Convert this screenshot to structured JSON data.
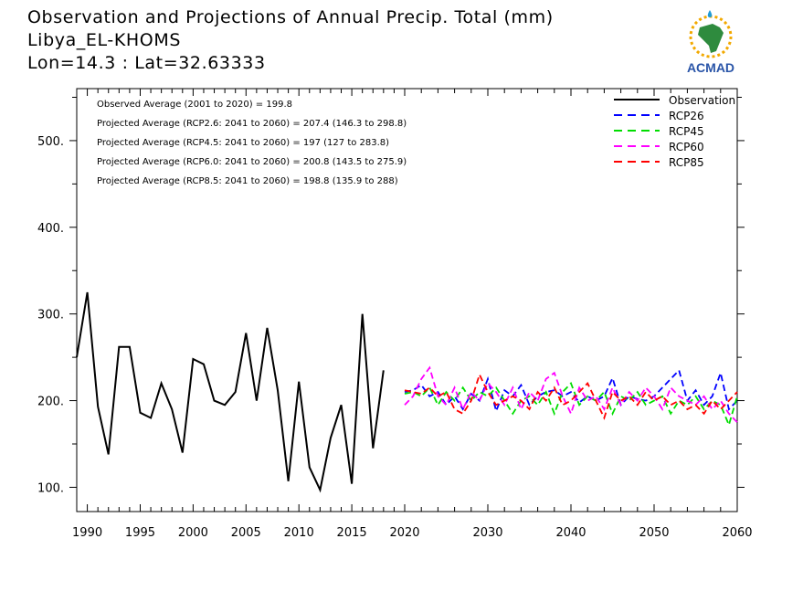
{
  "header": {
    "title": "Observation and Projections of Annual Precip. Total (mm)",
    "station": "Libya_EL-KHOMS",
    "coords": "Lon=14.3 : Lat=32.63333"
  },
  "logo": {
    "text": "ACMAD",
    "icon": "africa-map-icon"
  },
  "chart_data": {
    "type": "line",
    "xlim": [
      1989,
      2060
    ],
    "ylim": [
      72,
      560
    ],
    "x_ticks": [
      1990,
      1995,
      2000,
      2005,
      2010,
      2015,
      2020,
      2030,
      2040,
      2050,
      2060
    ],
    "y_ticks": [
      100,
      200,
      300,
      400,
      500
    ],
    "y_tick_labels": [
      "100.",
      "200.",
      "300.",
      "400.",
      "500."
    ],
    "stats": [
      "Observed Average (2001 to 2020) = 199.8",
      "Projected Average (RCP2.6: 2041 to 2060) = 207.4 (146.3 to 298.8)",
      "Projected Average (RCP4.5: 2041 to 2060) = 197 (127 to 283.8)",
      "Projected Average (RCP6.0: 2041 to 2060) = 200.8 (143.5 to 275.9)",
      "Projected Average (RCP8.5: 2041 to 2060) = 198.8 (135.9 to 288)"
    ],
    "legend_position": "top-right",
    "series": [
      {
        "name": "Observation",
        "color": "#000000",
        "dashed": false,
        "x": [
          1989,
          1990,
          1991,
          1992,
          1993,
          1994,
          1995,
          1996,
          1997,
          1998,
          1999,
          2000,
          2001,
          2002,
          2003,
          2004,
          2005,
          2006,
          2007,
          2008,
          2009,
          2010,
          2011,
          2012,
          2013,
          2014,
          2015,
          2016,
          2017,
          2018,
          2019,
          2020
        ],
        "values": [
          250,
          325,
          193,
          138,
          262,
          262,
          186,
          180,
          220,
          190,
          140,
          248,
          242,
          200,
          195,
          210,
          278,
          200,
          284,
          212,
          107,
          222,
          123,
          97,
          157,
          195,
          104,
          300,
          145,
          235,
          null,
          null
        ]
      },
      {
        "name": "RCP26",
        "color": "#0000ff",
        "dashed": true,
        "x": [
          2020,
          2021,
          2022,
          2023,
          2024,
          2025,
          2026,
          2027,
          2028,
          2029,
          2030,
          2031,
          2032,
          2033,
          2034,
          2035,
          2036,
          2037,
          2038,
          2039,
          2040,
          2041,
          2042,
          2043,
          2044,
          2045,
          2046,
          2047,
          2048,
          2049,
          2050,
          2051,
          2052,
          2053,
          2054,
          2055,
          2056,
          2057,
          2058,
          2059,
          2060
        ],
        "values": [
          210,
          212,
          218,
          205,
          210,
          195,
          205,
          190,
          208,
          200,
          225,
          188,
          212,
          205,
          218,
          195,
          205,
          210,
          212,
          205,
          210,
          198,
          205,
          200,
          205,
          226,
          195,
          205,
          202,
          200,
          205,
          215,
          225,
          235,
          200,
          212,
          195,
          205,
          232,
          190,
          200
        ]
      },
      {
        "name": "RCP45",
        "color": "#00dd00",
        "dashed": true,
        "x": [
          2020,
          2021,
          2022,
          2023,
          2024,
          2025,
          2026,
          2027,
          2028,
          2029,
          2030,
          2031,
          2032,
          2033,
          2034,
          2035,
          2036,
          2037,
          2038,
          2039,
          2040,
          2041,
          2042,
          2043,
          2044,
          2045,
          2046,
          2047,
          2048,
          2049,
          2050,
          2051,
          2052,
          2053,
          2054,
          2055,
          2056,
          2057,
          2058,
          2059,
          2060
        ],
        "values": [
          208,
          210,
          205,
          215,
          195,
          210,
          200,
          215,
          200,
          210,
          205,
          215,
          200,
          185,
          200,
          205,
          195,
          210,
          185,
          210,
          220,
          195,
          205,
          200,
          210,
          185,
          205,
          200,
          210,
          195,
          200,
          205,
          185,
          200,
          195,
          205,
          190,
          200,
          195,
          172,
          205
        ]
      },
      {
        "name": "RCP60",
        "color": "#ff00ff",
        "dashed": true,
        "x": [
          2020,
          2021,
          2022,
          2023,
          2024,
          2025,
          2026,
          2027,
          2028,
          2029,
          2030,
          2031,
          2032,
          2033,
          2034,
          2035,
          2036,
          2037,
          2038,
          2039,
          2040,
          2041,
          2042,
          2043,
          2044,
          2045,
          2046,
          2047,
          2048,
          2049,
          2050,
          2051,
          2052,
          2053,
          2054,
          2055,
          2056,
          2057,
          2058,
          2059,
          2060
        ],
        "values": [
          195,
          205,
          225,
          238,
          205,
          195,
          215,
          190,
          210,
          200,
          220,
          210,
          195,
          215,
          190,
          210,
          200,
          225,
          232,
          205,
          185,
          215,
          200,
          205,
          190,
          215,
          195,
          210,
          200,
          215,
          205,
          190,
          215,
          205,
          200,
          195,
          205,
          190,
          200,
          185,
          175
        ]
      },
      {
        "name": "RCP85",
        "color": "#ff0000",
        "dashed": true,
        "x": [
          2020,
          2021,
          2022,
          2023,
          2024,
          2025,
          2026,
          2027,
          2028,
          2029,
          2030,
          2031,
          2032,
          2033,
          2034,
          2035,
          2036,
          2037,
          2038,
          2039,
          2040,
          2041,
          2042,
          2043,
          2044,
          2045,
          2046,
          2047,
          2048,
          2049,
          2050,
          2051,
          2052,
          2053,
          2054,
          2055,
          2056,
          2057,
          2058,
          2059,
          2060
        ],
        "values": [
          212,
          210,
          208,
          215,
          205,
          210,
          190,
          185,
          200,
          230,
          210,
          195,
          200,
          205,
          200,
          190,
          210,
          200,
          215,
          195,
          200,
          210,
          220,
          200,
          180,
          210,
          200,
          205,
          195,
          210,
          200,
          205,
          195,
          200,
          190,
          195,
          185,
          200,
          190,
          200,
          210
        ]
      }
    ]
  }
}
